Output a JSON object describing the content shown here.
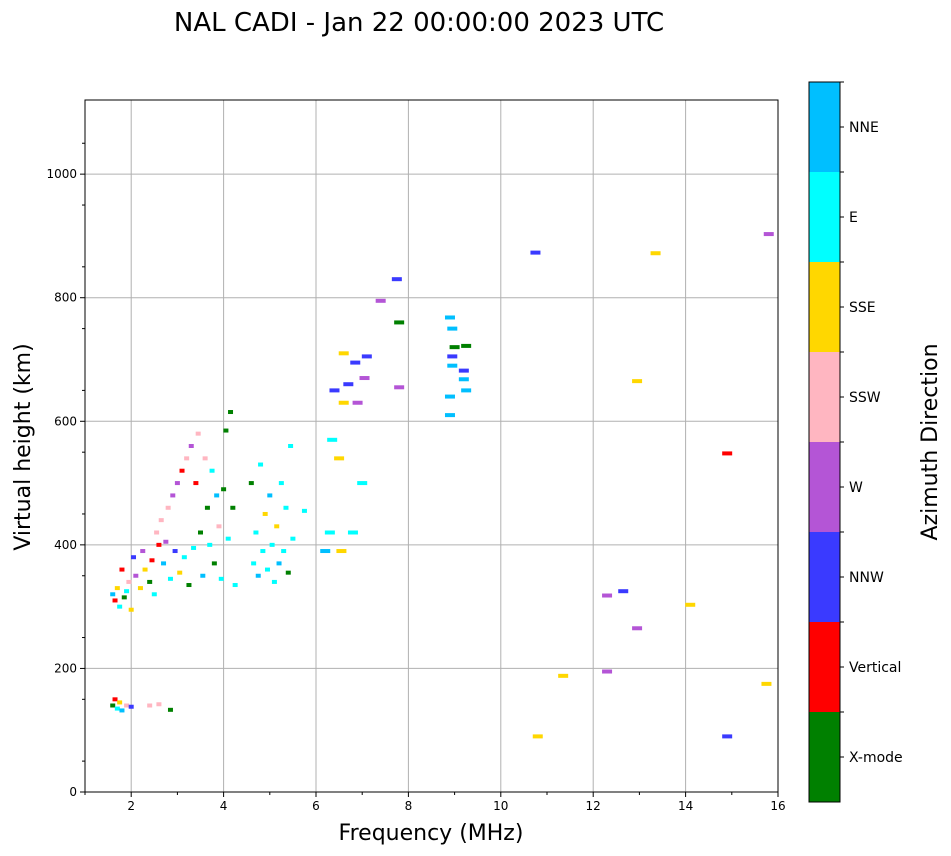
{
  "chart_data": {
    "type": "scatter",
    "title": "NAL CADI - Jan 22 00:00:00 2023 UTC",
    "xlabel": "Frequency (MHz)",
    "ylabel": "Virtual height (km)",
    "xlim": [
      1,
      16
    ],
    "ylim": [
      0,
      1120
    ],
    "xticks": [
      2,
      4,
      6,
      8,
      10,
      12,
      14,
      16
    ],
    "yticks": [
      0,
      200,
      400,
      600,
      800,
      1000
    ],
    "grid": true,
    "colorbar": {
      "label": "Azimuth Direction",
      "categories": [
        {
          "name": "X-mode",
          "color": "#008000"
        },
        {
          "name": "Vertical",
          "color": "#ff0000"
        },
        {
          "name": "NNW",
          "color": "#3a3aff"
        },
        {
          "name": "W",
          "color": "#b455d6"
        },
        {
          "name": "SSW",
          "color": "#ffb6c1"
        },
        {
          "name": "SSE",
          "color": "#ffd700"
        },
        {
          "name": "E",
          "color": "#00ffff"
        },
        {
          "name": "NNE",
          "color": "#00bfff"
        }
      ]
    },
    "points": [
      {
        "f": 1.6,
        "h": 140,
        "c": "X-mode"
      },
      {
        "f": 1.65,
        "h": 150,
        "c": "Vertical"
      },
      {
        "f": 1.7,
        "h": 135,
        "c": "E"
      },
      {
        "f": 1.75,
        "h": 145,
        "c": "SSE"
      },
      {
        "f": 1.8,
        "h": 132,
        "c": "NNE"
      },
      {
        "f": 1.9,
        "h": 140,
        "c": "SSW"
      },
      {
        "f": 2.0,
        "h": 138,
        "c": "NNW"
      },
      {
        "f": 2.4,
        "h": 140,
        "c": "SSW"
      },
      {
        "f": 2.6,
        "h": 142,
        "c": "SSW"
      },
      {
        "f": 2.85,
        "h": 133,
        "c": "X-mode"
      },
      {
        "f": 1.6,
        "h": 320,
        "c": "NNE"
      },
      {
        "f": 1.65,
        "h": 310,
        "c": "Vertical"
      },
      {
        "f": 1.7,
        "h": 330,
        "c": "SSE"
      },
      {
        "f": 1.75,
        "h": 300,
        "c": "E"
      },
      {
        "f": 1.8,
        "h": 360,
        "c": "Vertical"
      },
      {
        "f": 1.85,
        "h": 315,
        "c": "X-mode"
      },
      {
        "f": 1.9,
        "h": 325,
        "c": "E"
      },
      {
        "f": 1.95,
        "h": 340,
        "c": "SSW"
      },
      {
        "f": 2.0,
        "h": 295,
        "c": "SSE"
      },
      {
        "f": 2.05,
        "h": 380,
        "c": "NNW"
      },
      {
        "f": 2.1,
        "h": 350,
        "c": "W"
      },
      {
        "f": 2.2,
        "h": 330,
        "c": "SSE"
      },
      {
        "f": 2.25,
        "h": 390,
        "c": "W"
      },
      {
        "f": 2.3,
        "h": 360,
        "c": "SSE"
      },
      {
        "f": 2.4,
        "h": 340,
        "c": "X-mode"
      },
      {
        "f": 2.45,
        "h": 375,
        "c": "Vertical"
      },
      {
        "f": 2.5,
        "h": 320,
        "c": "E"
      },
      {
        "f": 2.55,
        "h": 420,
        "c": "SSW"
      },
      {
        "f": 2.6,
        "h": 400,
        "c": "Vertical"
      },
      {
        "f": 2.65,
        "h": 440,
        "c": "SSW"
      },
      {
        "f": 2.7,
        "h": 370,
        "c": "NNE"
      },
      {
        "f": 2.75,
        "h": 405,
        "c": "W"
      },
      {
        "f": 2.8,
        "h": 460,
        "c": "SSW"
      },
      {
        "f": 2.85,
        "h": 345,
        "c": "E"
      },
      {
        "f": 2.9,
        "h": 480,
        "c": "W"
      },
      {
        "f": 2.95,
        "h": 390,
        "c": "NNW"
      },
      {
        "f": 3.0,
        "h": 500,
        "c": "W"
      },
      {
        "f": 3.05,
        "h": 355,
        "c": "SSE"
      },
      {
        "f": 3.1,
        "h": 520,
        "c": "Vertical"
      },
      {
        "f": 3.15,
        "h": 380,
        "c": "E"
      },
      {
        "f": 3.2,
        "h": 540,
        "c": "SSW"
      },
      {
        "f": 3.25,
        "h": 335,
        "c": "X-mode"
      },
      {
        "f": 3.3,
        "h": 560,
        "c": "W"
      },
      {
        "f": 3.35,
        "h": 395,
        "c": "E"
      },
      {
        "f": 3.4,
        "h": 500,
        "c": "Vertical"
      },
      {
        "f": 3.45,
        "h": 580,
        "c": "SSW"
      },
      {
        "f": 3.5,
        "h": 420,
        "c": "X-mode"
      },
      {
        "f": 3.55,
        "h": 350,
        "c": "NNE"
      },
      {
        "f": 3.6,
        "h": 540,
        "c": "SSW"
      },
      {
        "f": 3.65,
        "h": 460,
        "c": "X-mode"
      },
      {
        "f": 3.7,
        "h": 400,
        "c": "E"
      },
      {
        "f": 3.75,
        "h": 520,
        "c": "E"
      },
      {
        "f": 3.8,
        "h": 370,
        "c": "X-mode"
      },
      {
        "f": 3.85,
        "h": 480,
        "c": "NNE"
      },
      {
        "f": 3.9,
        "h": 430,
        "c": "SSW"
      },
      {
        "f": 3.95,
        "h": 345,
        "c": "E"
      },
      {
        "f": 4.0,
        "h": 490,
        "c": "X-mode"
      },
      {
        "f": 4.05,
        "h": 585,
        "c": "X-mode"
      },
      {
        "f": 4.1,
        "h": 410,
        "c": "E"
      },
      {
        "f": 4.15,
        "h": 615,
        "c": "X-mode"
      },
      {
        "f": 4.2,
        "h": 460,
        "c": "X-mode"
      },
      {
        "f": 4.25,
        "h": 335,
        "c": "E"
      },
      {
        "f": 4.6,
        "h": 500,
        "c": "X-mode"
      },
      {
        "f": 4.65,
        "h": 370,
        "c": "E"
      },
      {
        "f": 4.7,
        "h": 420,
        "c": "E"
      },
      {
        "f": 4.75,
        "h": 350,
        "c": "NNE"
      },
      {
        "f": 4.8,
        "h": 530,
        "c": "E"
      },
      {
        "f": 4.85,
        "h": 390,
        "c": "E"
      },
      {
        "f": 4.9,
        "h": 450,
        "c": "SSE"
      },
      {
        "f": 4.95,
        "h": 360,
        "c": "E"
      },
      {
        "f": 5.0,
        "h": 480,
        "c": "NNE"
      },
      {
        "f": 5.05,
        "h": 400,
        "c": "E"
      },
      {
        "f": 5.1,
        "h": 340,
        "c": "E"
      },
      {
        "f": 5.15,
        "h": 430,
        "c": "SSE"
      },
      {
        "f": 5.2,
        "h": 370,
        "c": "NNE"
      },
      {
        "f": 5.25,
        "h": 500,
        "c": "E"
      },
      {
        "f": 5.3,
        "h": 390,
        "c": "E"
      },
      {
        "f": 5.35,
        "h": 460,
        "c": "E"
      },
      {
        "f": 5.4,
        "h": 355,
        "c": "X-mode"
      },
      {
        "f": 5.45,
        "h": 560,
        "c": "E"
      },
      {
        "f": 5.5,
        "h": 410,
        "c": "E"
      },
      {
        "f": 5.75,
        "h": 455,
        "c": "E"
      },
      {
        "f": 6.2,
        "h": 390,
        "c": "NNE"
      },
      {
        "f": 6.3,
        "h": 420,
        "c": "E"
      },
      {
        "f": 6.35,
        "h": 570,
        "c": "E"
      },
      {
        "f": 6.4,
        "h": 650,
        "c": "NNW"
      },
      {
        "f": 6.5,
        "h": 540,
        "c": "SSE"
      },
      {
        "f": 6.55,
        "h": 390,
        "c": "SSE"
      },
      {
        "f": 6.6,
        "h": 630,
        "c": "SSE"
      },
      {
        "f": 6.7,
        "h": 660,
        "c": "NNW"
      },
      {
        "f": 6.8,
        "h": 420,
        "c": "E"
      },
      {
        "f": 6.85,
        "h": 695,
        "c": "NNW"
      },
      {
        "f": 6.9,
        "h": 630,
        "c": "W"
      },
      {
        "f": 7.0,
        "h": 500,
        "c": "E"
      },
      {
        "f": 7.05,
        "h": 670,
        "c": "W"
      },
      {
        "f": 7.1,
        "h": 705,
        "c": "NNW"
      },
      {
        "f": 6.6,
        "h": 710,
        "c": "SSE"
      },
      {
        "f": 7.4,
        "h": 795,
        "c": "W"
      },
      {
        "f": 7.75,
        "h": 830,
        "c": "NNW"
      },
      {
        "f": 7.8,
        "h": 760,
        "c": "X-mode"
      },
      {
        "f": 7.8,
        "h": 655,
        "c": "W"
      },
      {
        "f": 8.9,
        "h": 610,
        "c": "NNE"
      },
      {
        "f": 8.9,
        "h": 640,
        "c": "NNE"
      },
      {
        "f": 8.95,
        "h": 690,
        "c": "NNE"
      },
      {
        "f": 9.0,
        "h": 720,
        "c": "X-mode"
      },
      {
        "f": 8.95,
        "h": 750,
        "c": "NNE"
      },
      {
        "f": 8.9,
        "h": 768,
        "c": "NNE"
      },
      {
        "f": 8.95,
        "h": 705,
        "c": "NNW"
      },
      {
        "f": 9.25,
        "h": 722,
        "c": "X-mode"
      },
      {
        "f": 9.2,
        "h": 668,
        "c": "NNE"
      },
      {
        "f": 9.25,
        "h": 650,
        "c": "NNE"
      },
      {
        "f": 9.2,
        "h": 682,
        "c": "NNW"
      },
      {
        "f": 10.75,
        "h": 873,
        "c": "NNW"
      },
      {
        "f": 10.8,
        "h": 90,
        "c": "SSE"
      },
      {
        "f": 11.35,
        "h": 188,
        "c": "SSE"
      },
      {
        "f": 12.3,
        "h": 318,
        "c": "W"
      },
      {
        "f": 12.65,
        "h": 325,
        "c": "NNW"
      },
      {
        "f": 12.3,
        "h": 195,
        "c": "W"
      },
      {
        "f": 12.95,
        "h": 265,
        "c": "W"
      },
      {
        "f": 12.95,
        "h": 665,
        "c": "SSE"
      },
      {
        "f": 13.35,
        "h": 872,
        "c": "SSE"
      },
      {
        "f": 14.1,
        "h": 303,
        "c": "SSE"
      },
      {
        "f": 14.9,
        "h": 548,
        "c": "Vertical"
      },
      {
        "f": 14.9,
        "h": 90,
        "c": "NNW"
      },
      {
        "f": 15.75,
        "h": 175,
        "c": "SSE"
      },
      {
        "f": 15.8,
        "h": 903,
        "c": "W"
      }
    ]
  }
}
